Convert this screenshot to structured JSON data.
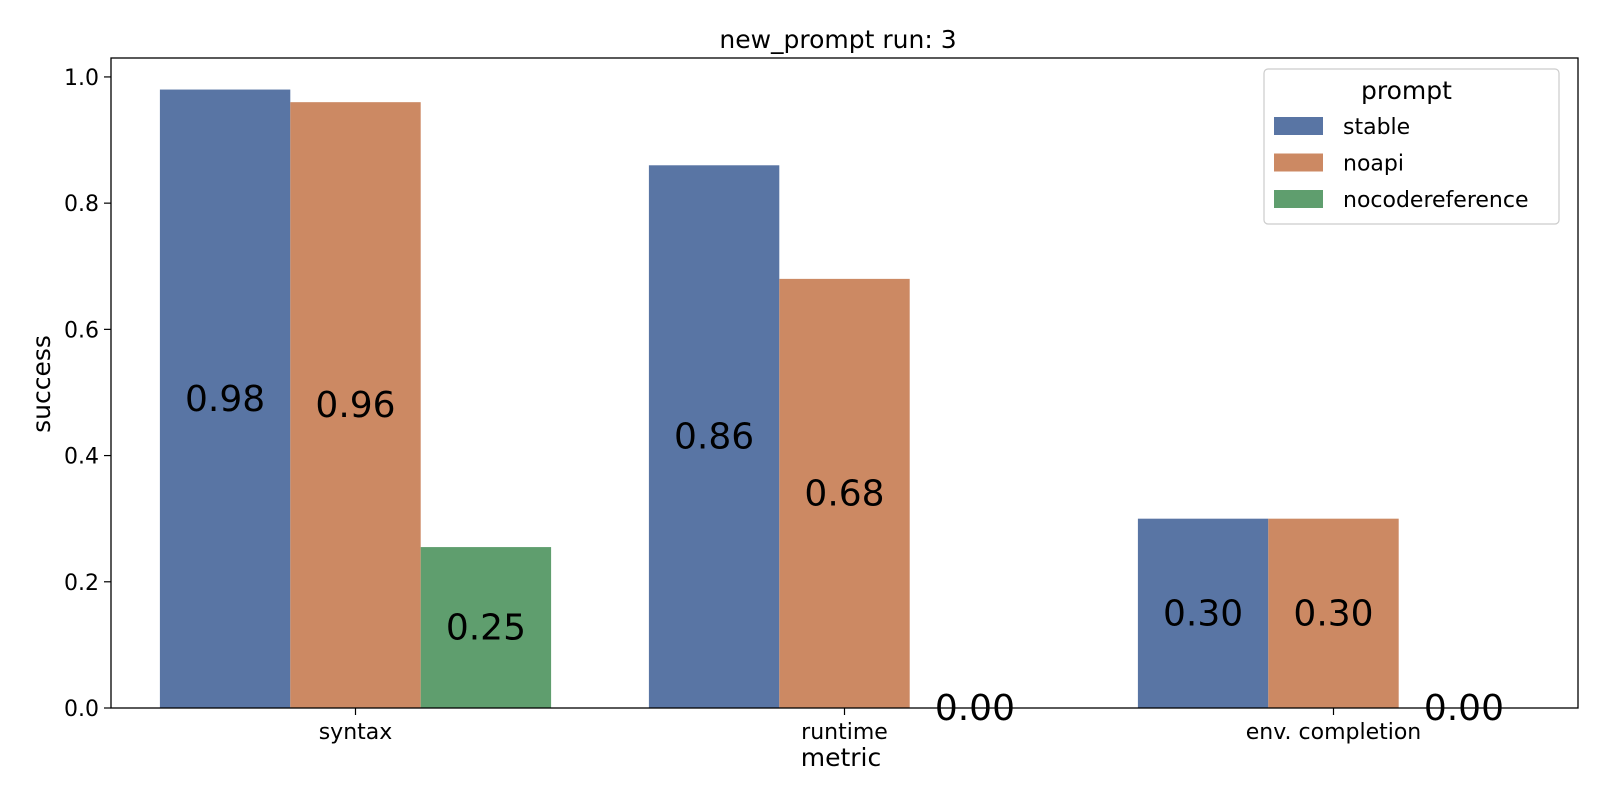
{
  "chart_data": {
    "type": "bar",
    "title": "new_prompt run: 3",
    "xlabel": "metric",
    "ylabel": "success",
    "categories": [
      "syntax",
      "runtime",
      "env. completion"
    ],
    "series": [
      {
        "name": "stable",
        "color": "#5975a4",
        "values": [
          0.98,
          0.86,
          0.3
        ],
        "labels": [
          "0.98",
          "0.86",
          "0.30"
        ]
      },
      {
        "name": "noapi",
        "color": "#cc8963",
        "values": [
          0.96,
          0.68,
          0.3
        ],
        "labels": [
          "0.96",
          "0.68",
          "0.30"
        ]
      },
      {
        "name": "nocodereference",
        "color": "#5f9e6e",
        "values": [
          0.255,
          0.0,
          0.0
        ],
        "labels": [
          "0.25",
          "0.00",
          "0.00"
        ]
      }
    ],
    "ylim": [
      0,
      1.03
    ],
    "yticks": [
      "0.0",
      "0.2",
      "0.4",
      "0.6",
      "0.8",
      "1.0"
    ],
    "legend": {
      "title": "prompt",
      "position": "top-right"
    },
    "grid": false
  }
}
